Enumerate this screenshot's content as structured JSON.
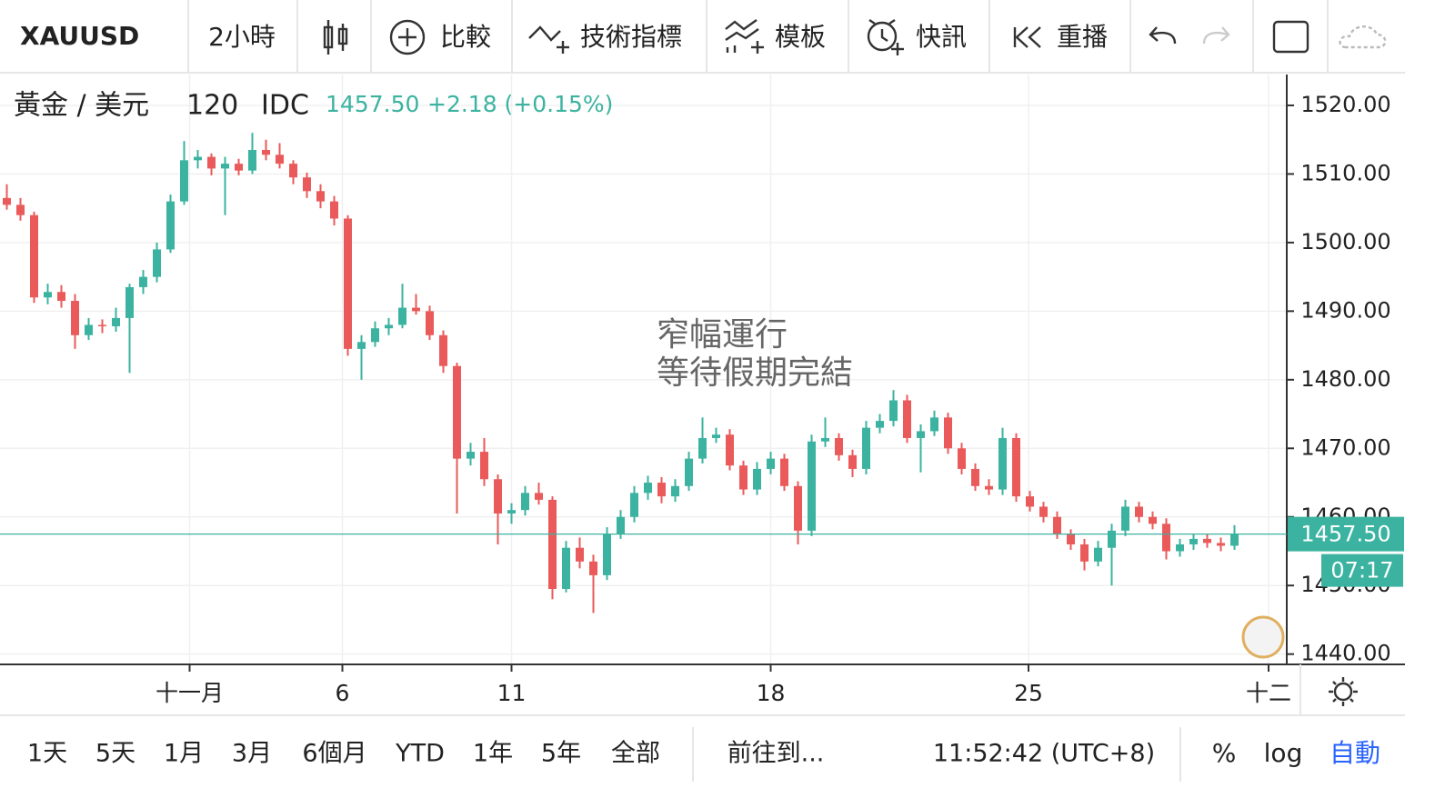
{
  "toolbar": {
    "symbol": "XAUUSD",
    "interval": "2小時",
    "buttons": [
      "比較",
      "技術指標",
      "模板",
      "快訊",
      "重播"
    ]
  },
  "legend": {
    "name": "黃金 / 美元",
    "interval": "120",
    "source": "IDC",
    "change": "+2.18 (+0.15%)"
  },
  "chart_data": {
    "type": "candlestick",
    "up_color": "#3bb3a0",
    "down_color": "#ea5a5a",
    "grid": true,
    "annotation": [
      "窄幅運行",
      "等待假期完結"
    ],
    "ylim": [
      1438.5,
      1524.5
    ],
    "yticks": [
      {
        "value": 1440,
        "label": "1440.00"
      },
      {
        "value": 1450,
        "label": "1450.00"
      },
      {
        "value": 1460,
        "label": "1460.00"
      },
      {
        "value": 1470,
        "label": "1470.00"
      },
      {
        "value": 1480,
        "label": "1480.00"
      },
      {
        "value": 1490,
        "label": "1490.00"
      },
      {
        "value": 1500,
        "label": "1500.00"
      },
      {
        "value": 1510,
        "label": "1510.00"
      },
      {
        "value": 1520,
        "label": "1520.00"
      }
    ],
    "xticks": [
      {
        "value": 13.4,
        "label": "十一月"
      },
      {
        "value": 24.6,
        "label": "6"
      },
      {
        "value": 37,
        "label": "11"
      },
      {
        "value": 56,
        "label": "18"
      },
      {
        "value": 74.9,
        "label": "25"
      },
      {
        "value": 92.5,
        "label": "十二"
      }
    ],
    "last_price": {
      "value": 1457.5,
      "label": "1457.50"
    },
    "countdown": "07:17",
    "candles": [
      [
        1506.5,
        1508.5,
        1504.8,
        1505.5
      ],
      [
        1505.5,
        1506.5,
        1503.2,
        1504.0
      ],
      [
        1504.0,
        1504.5,
        1491.2,
        1492.0
      ],
      [
        1492.0,
        1494.0,
        1491.0,
        1492.8
      ],
      [
        1492.8,
        1493.8,
        1490.5,
        1491.5
      ],
      [
        1491.5,
        1492.5,
        1484.5,
        1486.5
      ],
      [
        1486.5,
        1489.0,
        1485.8,
        1488.0
      ],
      [
        1488.0,
        1488.8,
        1486.8,
        1487.8
      ],
      [
        1487.8,
        1490.5,
        1487.0,
        1489.0
      ],
      [
        1489.0,
        1494.0,
        1481.0,
        1493.5
      ],
      [
        1493.5,
        1496.0,
        1492.5,
        1495.0
      ],
      [
        1495.0,
        1500.0,
        1494.2,
        1499.0
      ],
      [
        1499.0,
        1507.0,
        1498.5,
        1506.0
      ],
      [
        1506.0,
        1514.8,
        1505.5,
        1512.0
      ],
      [
        1512.0,
        1513.5,
        1510.8,
        1512.5
      ],
      [
        1512.5,
        1513.0,
        1509.8,
        1510.8
      ],
      [
        1510.8,
        1512.5,
        1504.0,
        1511.5
      ],
      [
        1511.5,
        1512.2,
        1509.8,
        1510.5
      ],
      [
        1510.5,
        1516.0,
        1510.0,
        1513.5
      ],
      [
        1513.5,
        1515.0,
        1512.0,
        1512.8
      ],
      [
        1512.8,
        1514.5,
        1510.8,
        1511.5
      ],
      [
        1511.5,
        1512.0,
        1508.5,
        1509.5
      ],
      [
        1509.5,
        1510.2,
        1506.5,
        1507.5
      ],
      [
        1507.5,
        1508.5,
        1505.0,
        1506.0
      ],
      [
        1506.0,
        1506.8,
        1502.5,
        1503.5
      ],
      [
        1503.5,
        1504.0,
        1483.5,
        1484.5
      ],
      [
        1484.5,
        1486.5,
        1480.0,
        1485.5
      ],
      [
        1485.5,
        1488.5,
        1484.8,
        1487.5
      ],
      [
        1487.5,
        1489.0,
        1486.5,
        1488.0
      ],
      [
        1488.0,
        1494.0,
        1487.5,
        1490.5
      ],
      [
        1490.5,
        1492.5,
        1489.5,
        1490.0
      ],
      [
        1490.0,
        1490.8,
        1485.8,
        1486.5
      ],
      [
        1486.5,
        1487.2,
        1481.0,
        1482.0
      ],
      [
        1482.0,
        1482.5,
        1460.5,
        1468.5
      ],
      [
        1468.5,
        1470.8,
        1467.5,
        1469.5
      ],
      [
        1469.5,
        1471.5,
        1464.5,
        1465.5
      ],
      [
        1465.5,
        1466.2,
        1456.0,
        1460.5
      ],
      [
        1460.5,
        1462.0,
        1459.0,
        1461.0
      ],
      [
        1461.0,
        1464.5,
        1460.2,
        1463.5
      ],
      [
        1463.5,
        1465.0,
        1461.8,
        1462.5
      ],
      [
        1462.5,
        1463.0,
        1448.0,
        1449.5
      ],
      [
        1449.5,
        1456.5,
        1449.0,
        1455.5
      ],
      [
        1455.5,
        1457.0,
        1452.5,
        1453.5
      ],
      [
        1453.5,
        1454.5,
        1446.0,
        1451.5
      ],
      [
        1451.5,
        1458.5,
        1450.8,
        1457.5
      ],
      [
        1457.5,
        1461.0,
        1456.8,
        1460.0
      ],
      [
        1460.0,
        1464.5,
        1459.2,
        1463.5
      ],
      [
        1463.5,
        1466.0,
        1462.5,
        1465.0
      ],
      [
        1465.0,
        1465.8,
        1462.0,
        1463.0
      ],
      [
        1463.0,
        1465.5,
        1462.2,
        1464.5
      ],
      [
        1464.5,
        1469.5,
        1463.8,
        1468.5
      ],
      [
        1468.5,
        1474.5,
        1467.8,
        1471.5
      ],
      [
        1471.5,
        1473.0,
        1470.8,
        1472.0
      ],
      [
        1472.0,
        1472.8,
        1466.8,
        1467.5
      ],
      [
        1467.5,
        1468.2,
        1463.2,
        1464.0
      ],
      [
        1464.0,
        1468.0,
        1463.2,
        1467.0
      ],
      [
        1467.0,
        1469.5,
        1466.2,
        1468.5
      ],
      [
        1468.5,
        1469.2,
        1463.8,
        1464.5
      ],
      [
        1464.5,
        1465.2,
        1456.0,
        1458.0
      ],
      [
        1458.0,
        1472.0,
        1457.2,
        1471.0
      ],
      [
        1471.0,
        1474.5,
        1470.2,
        1471.5
      ],
      [
        1471.5,
        1472.2,
        1468.2,
        1469.0
      ],
      [
        1469.0,
        1469.8,
        1465.8,
        1467.0
      ],
      [
        1467.0,
        1474.0,
        1466.2,
        1473.0
      ],
      [
        1473.0,
        1475.0,
        1472.2,
        1474.0
      ],
      [
        1474.0,
        1478.5,
        1473.2,
        1477.0
      ],
      [
        1477.0,
        1477.8,
        1470.8,
        1471.5
      ],
      [
        1471.5,
        1473.5,
        1466.5,
        1472.5
      ],
      [
        1472.5,
        1475.5,
        1471.8,
        1474.5
      ],
      [
        1474.5,
        1475.2,
        1469.2,
        1470.0
      ],
      [
        1470.0,
        1470.8,
        1466.2,
        1467.0
      ],
      [
        1467.0,
        1467.8,
        1463.8,
        1464.5
      ],
      [
        1464.5,
        1465.5,
        1463.2,
        1464.0
      ],
      [
        1464.0,
        1473.0,
        1463.2,
        1471.5
      ],
      [
        1471.5,
        1472.2,
        1462.2,
        1463.0
      ],
      [
        1463.0,
        1463.8,
        1460.8,
        1461.5
      ],
      [
        1461.5,
        1462.2,
        1459.2,
        1460.0
      ],
      [
        1460.0,
        1460.8,
        1456.8,
        1457.5
      ],
      [
        1457.5,
        1458.2,
        1455.2,
        1456.0
      ],
      [
        1456.0,
        1456.8,
        1452.2,
        1453.5
      ],
      [
        1453.5,
        1456.5,
        1452.8,
        1455.5
      ],
      [
        1455.5,
        1459.0,
        1450.0,
        1458.0
      ],
      [
        1458.0,
        1462.5,
        1457.2,
        1461.5
      ],
      [
        1461.5,
        1462.2,
        1459.2,
        1460.0
      ],
      [
        1460.0,
        1460.8,
        1458.2,
        1459.0
      ],
      [
        1459.0,
        1459.8,
        1453.8,
        1455.0
      ],
      [
        1455.0,
        1456.8,
        1454.2,
        1456.0
      ],
      [
        1456.0,
        1457.5,
        1455.2,
        1456.8
      ],
      [
        1456.8,
        1457.5,
        1455.5,
        1456.2
      ],
      [
        1456.2,
        1457.0,
        1455.0,
        1455.8
      ],
      [
        1455.8,
        1458.8,
        1455.2,
        1457.5
      ]
    ]
  },
  "bottom_bar": {
    "ranges": [
      "1天",
      "5天",
      "1月",
      "3月",
      "6個月",
      "YTD",
      "1年",
      "5年",
      "全部"
    ],
    "goto": "前往到...",
    "time": "11:52:42 (UTC+8)",
    "options": [
      "%",
      "log",
      "自動"
    ]
  }
}
